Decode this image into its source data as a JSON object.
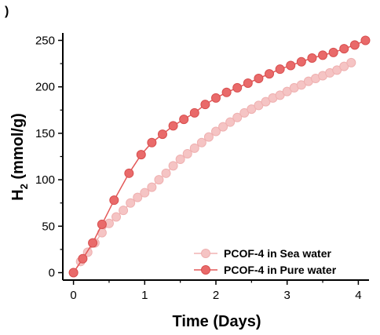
{
  "panel_tag": ")",
  "colors": {
    "sea_fill": "#f5c4c4",
    "sea_line": "#f2b3b3",
    "pure_fill": "#e96a6a",
    "pure_line": "#e35858",
    "axis": "#000000"
  },
  "chart_data": {
    "type": "scatter",
    "xlabel": "Time (Days)",
    "ylabel_main": "H",
    "ylabel_sub": "2",
    "ylabel_rest": " (mmol/g)",
    "xlim": [
      -0.15,
      4.15
    ],
    "ylim": [
      -8,
      258
    ],
    "x_ticks": [
      0,
      1,
      2,
      3,
      4
    ],
    "y_ticks": [
      0,
      50,
      100,
      150,
      200,
      250
    ],
    "x_tick_labels": [
      "0",
      "1",
      "2",
      "3",
      "4"
    ],
    "y_tick_labels": [
      "0",
      "50",
      "100",
      "150",
      "200",
      "250"
    ],
    "legend_position": "bottom-right",
    "series": [
      {
        "name": "PCOF-4 in Sea water",
        "style": "sea",
        "x": [
          0,
          0.1,
          0.2,
          0.3,
          0.4,
          0.5,
          0.6,
          0.7,
          0.8,
          0.9,
          1.0,
          1.1,
          1.2,
          1.3,
          1.4,
          1.5,
          1.6,
          1.7,
          1.8,
          1.9,
          2.0,
          2.1,
          2.2,
          2.3,
          2.4,
          2.5,
          2.6,
          2.7,
          2.8,
          2.9,
          3.0,
          3.1,
          3.2,
          3.3,
          3.4,
          3.5,
          3.6,
          3.7,
          3.8,
          3.9
        ],
        "y": [
          0,
          12,
          22,
          32,
          43,
          53,
          60,
          67,
          75,
          81,
          86,
          92,
          100,
          107,
          115,
          122,
          128,
          134,
          140,
          146,
          152,
          157,
          162,
          167,
          172,
          176,
          180,
          184,
          188,
          191,
          195,
          199,
          202,
          206,
          209,
          212,
          215,
          218,
          222,
          226
        ]
      },
      {
        "name": "PCOF-4 in Pure water",
        "style": "pure",
        "x": [
          0,
          0.13,
          0.27,
          0.4,
          0.57,
          0.78,
          0.95,
          1.1,
          1.25,
          1.4,
          1.55,
          1.7,
          1.85,
          2.0,
          2.15,
          2.3,
          2.45,
          2.6,
          2.75,
          2.9,
          3.05,
          3.2,
          3.35,
          3.5,
          3.65,
          3.8,
          3.95,
          4.1
        ],
        "y": [
          0,
          15,
          32,
          52,
          78,
          107,
          127,
          140,
          149,
          158,
          165,
          172,
          181,
          188,
          194,
          199,
          204,
          209,
          214,
          219,
          223,
          227,
          231,
          234,
          237,
          241,
          245,
          250
        ]
      }
    ]
  }
}
